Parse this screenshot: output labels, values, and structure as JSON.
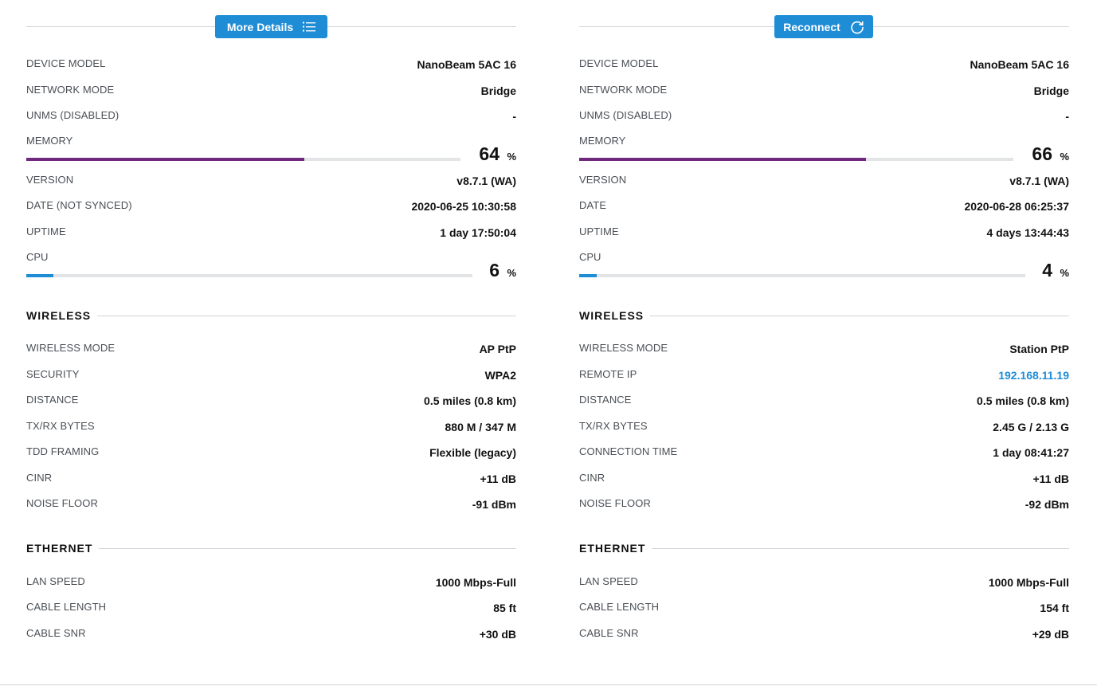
{
  "left": {
    "button": {
      "label": "More Details",
      "icon": "list-icon"
    },
    "rows_top": [
      {
        "label": "DEVICE MODEL",
        "value": "NanoBeam 5AC 16"
      },
      {
        "label": "NETWORK MODE",
        "value": "Bridge"
      },
      {
        "label": "UNMS (DISABLED)",
        "value": "-"
      }
    ],
    "memory": {
      "label": "MEMORY",
      "value": "64",
      "unit": "%",
      "percent": 64,
      "color": "#6f2a7d"
    },
    "rows_mid": [
      {
        "label": "VERSION",
        "value": "v8.7.1 (WA)"
      },
      {
        "label": "DATE (NOT SYNCED)",
        "value": "2020-06-25 10:30:58"
      },
      {
        "label": "UPTIME",
        "value": "1 day 17:50:04"
      }
    ],
    "cpu": {
      "label": "CPU",
      "value": "6",
      "unit": "%",
      "percent": 6,
      "color": "#1f8dd6"
    },
    "wireless": {
      "title": "WIRELESS",
      "rows": [
        {
          "label": "WIRELESS MODE",
          "value": "AP PtP"
        },
        {
          "label": "SECURITY",
          "value": "WPA2"
        },
        {
          "label": "DISTANCE",
          "value": "0.5 miles (0.8 km)"
        },
        {
          "label": "TX/RX BYTES",
          "value": "880 M / 347 M"
        },
        {
          "label": "TDD FRAMING",
          "value": "Flexible (legacy)"
        },
        {
          "label": "CINR",
          "value": "+11 dB"
        },
        {
          "label": "NOISE FLOOR",
          "value": "-91 dBm"
        }
      ]
    },
    "ethernet": {
      "title": "ETHERNET",
      "rows": [
        {
          "label": "LAN SPEED",
          "value": "1000 Mbps-Full"
        },
        {
          "label": "CABLE LENGTH",
          "value": "85 ft"
        },
        {
          "label": "CABLE SNR",
          "value": "+30 dB"
        }
      ]
    }
  },
  "right": {
    "button": {
      "label": "Reconnect",
      "icon": "refresh-icon"
    },
    "rows_top": [
      {
        "label": "DEVICE MODEL",
        "value": "NanoBeam 5AC 16"
      },
      {
        "label": "NETWORK MODE",
        "value": "Bridge"
      },
      {
        "label": "UNMS (DISABLED)",
        "value": "-"
      }
    ],
    "memory": {
      "label": "MEMORY",
      "value": "66",
      "unit": "%",
      "percent": 66,
      "color": "#6f2a7d"
    },
    "rows_mid": [
      {
        "label": "VERSION",
        "value": "v8.7.1 (WA)"
      },
      {
        "label": "DATE",
        "value": "2020-06-28 06:25:37"
      },
      {
        "label": "UPTIME",
        "value": "4 days 13:44:43"
      }
    ],
    "cpu": {
      "label": "CPU",
      "value": "4",
      "unit": "%",
      "percent": 4,
      "color": "#1f8dd6"
    },
    "wireless": {
      "title": "WIRELESS",
      "rows": [
        {
          "label": "WIRELESS MODE",
          "value": "Station PtP"
        },
        {
          "label": "REMOTE IP",
          "value": "192.168.11.19",
          "link": true
        },
        {
          "label": "DISTANCE",
          "value": "0.5 miles (0.8 km)"
        },
        {
          "label": "TX/RX BYTES",
          "value": "2.45 G / 2.13 G"
        },
        {
          "label": "CONNECTION TIME",
          "value": "1 day 08:41:27"
        },
        {
          "label": "CINR",
          "value": "+11 dB"
        },
        {
          "label": "NOISE FLOOR",
          "value": "-92 dBm"
        }
      ]
    },
    "ethernet": {
      "title": "ETHERNET",
      "rows": [
        {
          "label": "LAN SPEED",
          "value": "1000 Mbps-Full"
        },
        {
          "label": "CABLE LENGTH",
          "value": "154 ft"
        },
        {
          "label": "CABLE SNR",
          "value": "+29 dB"
        }
      ]
    }
  }
}
